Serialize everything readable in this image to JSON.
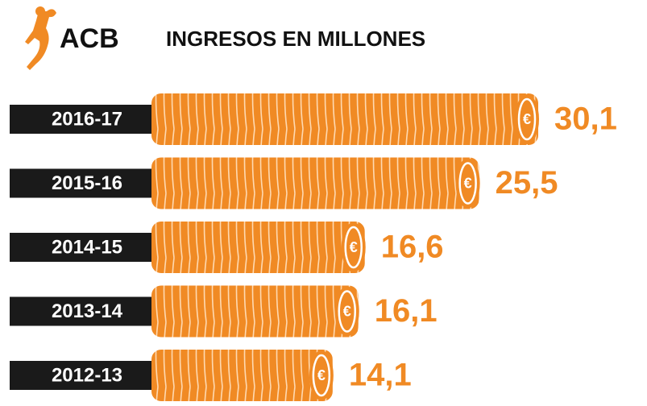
{
  "logo": "ACB",
  "chart_data": {
    "type": "bar",
    "title": "INGRESOS EN MILLONES",
    "categories": [
      "2016-17",
      "2015-16",
      "2014-15",
      "2013-14",
      "2012-13"
    ],
    "values": [
      30.1,
      25.5,
      16.6,
      16.1,
      14.1
    ],
    "value_labels": [
      "30,1",
      "25,5",
      "16,6",
      "16,1",
      "14,1"
    ],
    "currency_symbol": "€",
    "color": "#f08a24"
  }
}
